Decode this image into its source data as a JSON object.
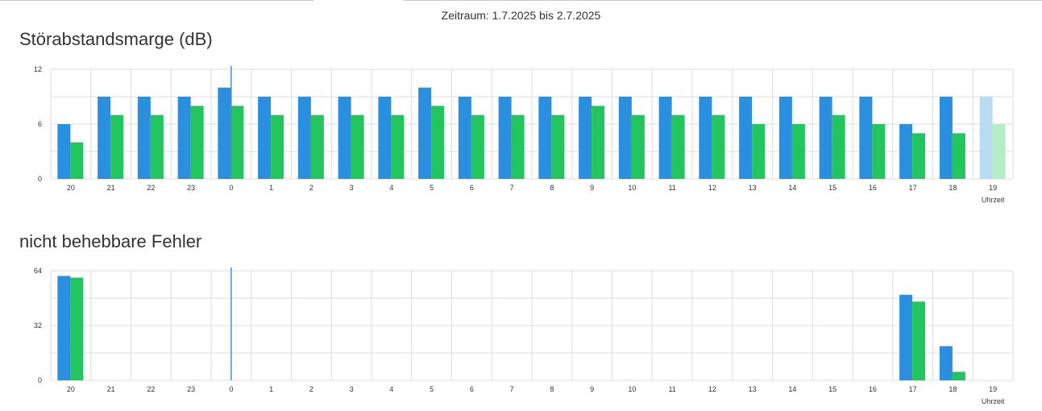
{
  "period_label": "Zeitraum: 1.7.2025 bis 2.7.2025",
  "colors": {
    "series_a": "#2b8fe0",
    "series_b": "#22c55e",
    "series_a_current": "#b8dcf3",
    "series_b_current": "#b6ecc8",
    "grid": "#dddddd",
    "marker": "#4a8fcf"
  },
  "chart_data": [
    {
      "type": "bar",
      "title": "Störabstandsmarge (dB)",
      "xlabel": "Uhrzeit",
      "ylabel": "",
      "categories": [
        "20",
        "21",
        "22",
        "23",
        "0",
        "1",
        "2",
        "3",
        "4",
        "5",
        "6",
        "7",
        "8",
        "9",
        "10",
        "11",
        "12",
        "13",
        "14",
        "15",
        "16",
        "17",
        "18",
        "19"
      ],
      "series": [
        {
          "values": [
            6,
            9,
            9,
            9,
            10,
            9,
            9,
            9,
            9,
            10,
            9,
            9,
            9,
            9,
            9,
            9,
            9,
            9,
            9,
            9,
            9,
            6,
            9,
            9
          ]
        },
        {
          "values": [
            4,
            7,
            7,
            8,
            8,
            7,
            7,
            7,
            7,
            8,
            7,
            7,
            7,
            8,
            7,
            7,
            7,
            6,
            6,
            7,
            6,
            5,
            5,
            6
          ]
        }
      ],
      "ylim": [
        0,
        12
      ],
      "yticks": [
        0,
        6,
        12
      ],
      "grid": true,
      "current_hour": "19",
      "marker_at": "0"
    },
    {
      "type": "bar",
      "title": "nicht behebbare Fehler",
      "xlabel": "Uhrzeit",
      "ylabel": "",
      "categories": [
        "20",
        "21",
        "22",
        "23",
        "0",
        "1",
        "2",
        "3",
        "4",
        "5",
        "6",
        "7",
        "8",
        "9",
        "10",
        "11",
        "12",
        "13",
        "14",
        "15",
        "16",
        "17",
        "18",
        "19"
      ],
      "series": [
        {
          "values": [
            61,
            0,
            0,
            0,
            0,
            0,
            0,
            0,
            0,
            0,
            0,
            0,
            0,
            0,
            0,
            0,
            0,
            0,
            0,
            0,
            0,
            50,
            20,
            0
          ]
        },
        {
          "values": [
            60,
            0,
            0,
            0,
            0,
            0,
            0,
            0,
            0,
            0,
            0,
            0,
            0,
            0,
            0,
            0,
            0,
            0,
            0,
            0,
            0,
            46,
            5,
            0
          ]
        }
      ],
      "ylim": [
        0,
        64
      ],
      "yticks": [
        0,
        32,
        64
      ],
      "grid": true,
      "marker_at": "0"
    }
  ]
}
